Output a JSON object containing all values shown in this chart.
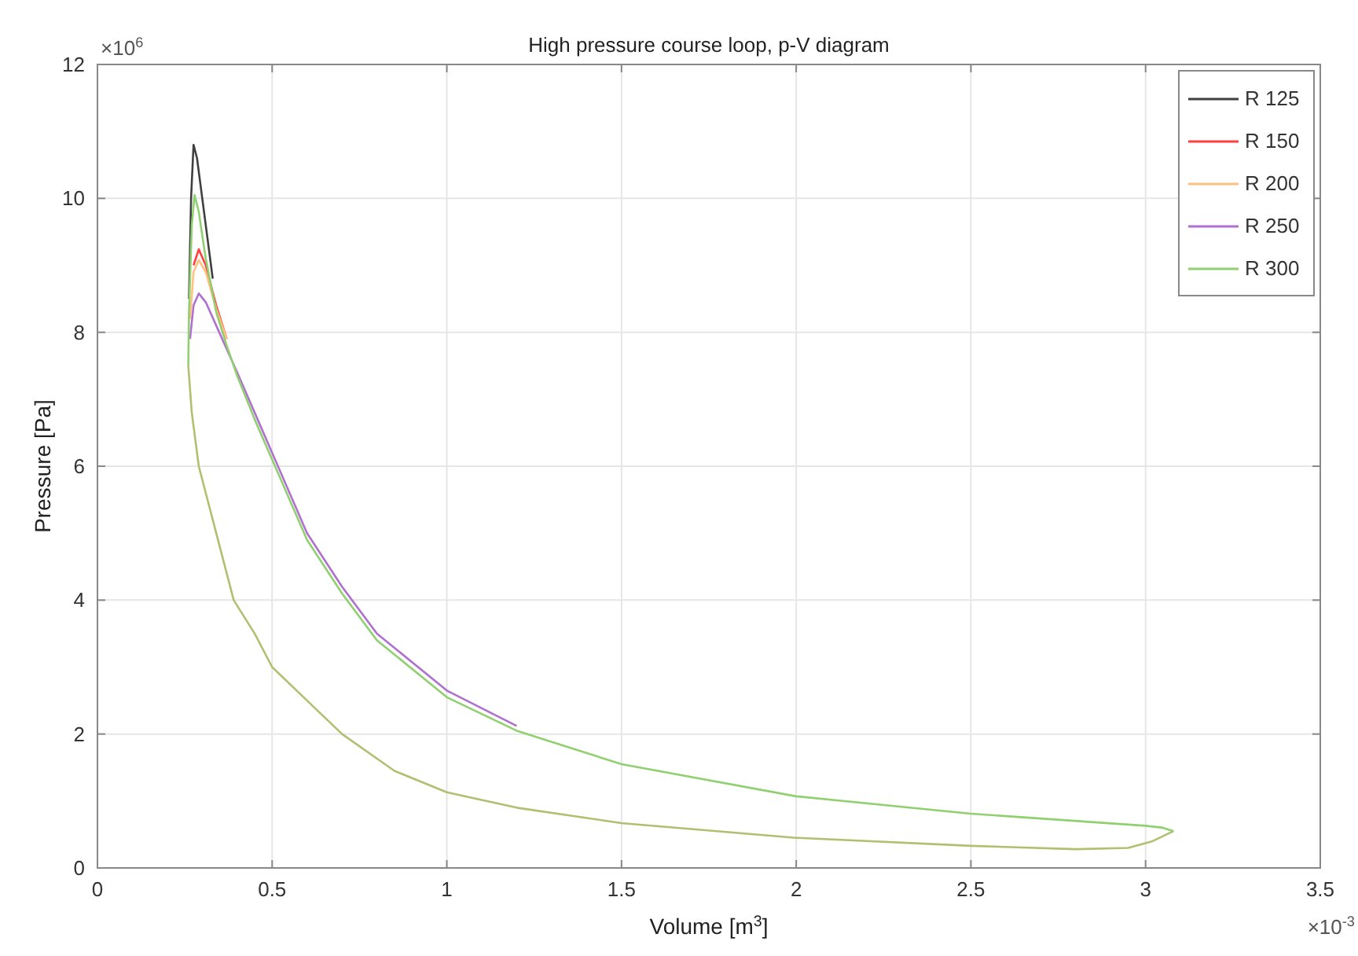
{
  "chart_data": {
    "type": "line",
    "title": "High pressure course loop, p-V diagram",
    "xlabel": "Volume [m$^{3}$]",
    "ylabel": "Pressure [Pa]",
    "xlim": [
      0,
      3.5
    ],
    "xticks": [
      0,
      0.5,
      1,
      1.5,
      2,
      2.5,
      3,
      3.5
    ],
    "ylim": [
      0,
      12
    ],
    "yticks": [
      0,
      2,
      4,
      6,
      8,
      10,
      12
    ],
    "grid": true,
    "legend": "top right",
    "line_style": "solid",
    "annotations": [
      "×10$^{6}$",
      "×10$^{-3}$"
    ],
    "series": [
      {
        "name": "R 125",
        "color": "#404040",
        "x": [
          0.262,
          0.268,
          0.275,
          0.285,
          0.3,
          0.33
        ],
        "values": [
          8.5,
          10.0,
          10.8,
          10.6,
          10.0,
          8.8
        ]
      },
      {
        "name": "R 150",
        "color": "#ff4040",
        "x": [
          0.275,
          0.29,
          0.31,
          0.34,
          0.37
        ],
        "values": [
          9.0,
          9.24,
          9.0,
          8.4,
          7.9
        ]
      },
      {
        "name": "R 200",
        "color": "#ffc080",
        "x": [
          0.265,
          0.275,
          0.29,
          0.31,
          0.34,
          0.37
        ],
        "values": [
          8.2,
          8.9,
          9.08,
          8.9,
          8.35,
          7.9
        ]
      },
      {
        "name": "R 250",
        "color": "#b070d0",
        "x": [
          0.265,
          0.275,
          0.29,
          0.31,
          0.34,
          0.37,
          0.4,
          0.45,
          0.5,
          0.6,
          0.7,
          0.8,
          1.0,
          1.2
        ],
        "values": [
          7.9,
          8.4,
          8.58,
          8.45,
          8.1,
          7.75,
          7.4,
          6.8,
          6.2,
          5.0,
          4.2,
          3.5,
          2.65,
          2.12
        ]
      },
      {
        "color": "#b0c070",
        "x": [
          0.26,
          0.27,
          0.29,
          0.34,
          0.39,
          0.45,
          0.5,
          0.6,
          0.7,
          0.85,
          1.0,
          1.2,
          1.5,
          2.0,
          2.5,
          2.8,
          2.95,
          3.02,
          3.08
        ],
        "values": [
          7.5,
          6.8,
          6.0,
          5.0,
          4.0,
          3.5,
          3.0,
          2.5,
          2.0,
          1.45,
          1.13,
          0.9,
          0.67,
          0.45,
          0.33,
          0.28,
          0.3,
          0.4,
          0.55
        ]
      },
      {
        "name": "R 300",
        "color": "#90d070",
        "x": [
          0.26,
          0.262,
          0.27,
          0.278,
          0.29,
          0.31,
          0.34,
          0.37,
          0.4,
          0.45,
          0.5,
          0.6,
          0.7,
          0.8,
          1.0,
          1.2,
          1.5,
          2.0,
          2.5,
          3.0,
          3.05,
          3.08
        ],
        "values": [
          7.5,
          8.3,
          9.6,
          10.05,
          9.8,
          9.1,
          8.3,
          7.8,
          7.35,
          6.7,
          6.1,
          4.9,
          4.1,
          3.4,
          2.55,
          2.05,
          1.55,
          1.07,
          0.81,
          0.63,
          0.6,
          0.55
        ]
      }
    ]
  }
}
